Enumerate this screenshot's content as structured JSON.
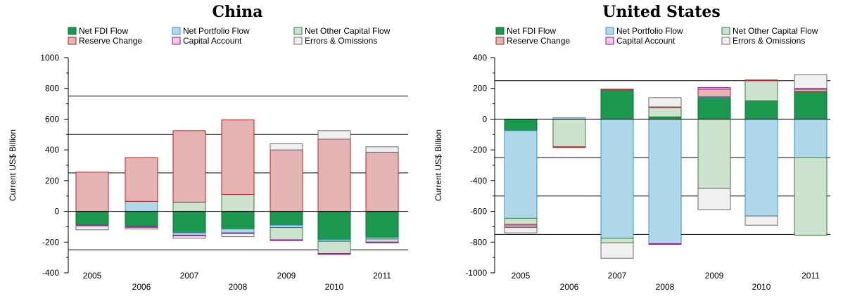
{
  "legend": [
    {
      "key": "fdi",
      "label": "Net FDI Flow",
      "fill": "#1a9850",
      "stroke": "#0f6b35"
    },
    {
      "key": "portfolio",
      "label": "Net Portfolio Flow",
      "fill": "#aed8ea",
      "stroke": "#3b8fd1"
    },
    {
      "key": "other",
      "label": "Net Other Capital Flow",
      "fill": "#cde2cf",
      "stroke": "#3c7a3c"
    },
    {
      "key": "reserve",
      "label": "Reserve Change",
      "fill": "#e4b4b4",
      "stroke": "#b22222"
    },
    {
      "key": "capital",
      "label": "Capital Account",
      "fill": "#f3c6f0",
      "stroke": "#8e1b8e"
    },
    {
      "key": "errors",
      "label": "Errors & Omissions",
      "fill": "#f0f0f0",
      "stroke": "#6b6b6b"
    }
  ],
  "chart_data": [
    {
      "type": "bar",
      "stacked": true,
      "title": "China",
      "ylabel": "Current US$ Billion",
      "xlabel": "",
      "ylim": [
        -400,
        1000
      ],
      "yticks": [
        -400,
        -200,
        0,
        200,
        400,
        600,
        800,
        1000
      ],
      "reference_lines": [
        -250,
        250,
        500,
        750
      ],
      "categories": [
        "2005",
        "2006",
        "2007",
        "2008",
        "2009",
        "2010",
        "2011"
      ],
      "series": [
        {
          "name": "Net FDI Flow",
          "values": [
            -90,
            -100,
            -140,
            -115,
            -90,
            -185,
            -170
          ]
        },
        {
          "name": "Net Portfolio Flow",
          "values": [
            0,
            65,
            -15,
            -25,
            -15,
            -10,
            -10
          ]
        },
        {
          "name": "Net Other Capital Flow",
          "values": [
            0,
            0,
            60,
            110,
            -80,
            -80,
            -20
          ]
        },
        {
          "name": "Reserve Change",
          "values": [
            255,
            285,
            465,
            485,
            400,
            470,
            385
          ]
        },
        {
          "name": "Capital Account",
          "values": [
            -5,
            -5,
            -5,
            -5,
            -5,
            -5,
            -5
          ]
        },
        {
          "name": "Errors & Omissions",
          "values": [
            -25,
            -10,
            -15,
            -20,
            40,
            55,
            35
          ]
        }
      ]
    },
    {
      "type": "bar",
      "stacked": true,
      "title": "United States",
      "ylabel": "Current US$ Billion",
      "xlabel": "",
      "ylim": [
        -1000,
        400
      ],
      "yticks": [
        -1000,
        -800,
        -600,
        -400,
        -200,
        0,
        200,
        400
      ],
      "reference_lines": [
        -750,
        -500,
        -250,
        250
      ],
      "categories": [
        "2005",
        "2006",
        "2007",
        "2008",
        "2009",
        "2010",
        "2011"
      ],
      "series": [
        {
          "name": "Net FDI Flow",
          "values": [
            -75,
            0,
            190,
            15,
            140,
            120,
            180
          ]
        },
        {
          "name": "Net Portfolio Flow",
          "values": [
            -570,
            10,
            -775,
            -810,
            5,
            -630,
            -250
          ]
        },
        {
          "name": "Net Other Capital Flow",
          "values": [
            -40,
            -180,
            -30,
            60,
            -450,
            130,
            -505
          ]
        },
        {
          "name": "Reserve Change",
          "values": [
            -10,
            -5,
            5,
            5,
            50,
            5,
            15
          ]
        },
        {
          "name": "Capital Account",
          "values": [
            -10,
            0,
            0,
            -5,
            10,
            0,
            5
          ]
        },
        {
          "name": "Errors & Omissions",
          "values": [
            -35,
            0,
            -100,
            60,
            -140,
            -60,
            90
          ]
        }
      ]
    }
  ]
}
